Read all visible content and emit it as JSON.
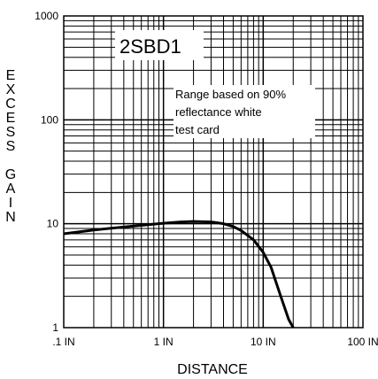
{
  "chart_data": {
    "type": "line",
    "title": "2SBD1",
    "annotation": [
      "Range based on 90%",
      "reflectance white",
      "test card"
    ],
    "xlabel": "DISTANCE",
    "ylabel": "EXCESS GAIN",
    "x_scale": "log",
    "y_scale": "log",
    "xlim": [
      0.1,
      100
    ],
    "ylim": [
      1,
      1000
    ],
    "x_tick_labels": [
      ".1 IN",
      "1 IN",
      "10 IN",
      "100 IN"
    ],
    "y_tick_labels": [
      "1",
      "10",
      "100",
      "1000"
    ],
    "grid": true,
    "series": [
      {
        "x": [
          0.1,
          0.2,
          0.4,
          0.7,
          1,
          1.5,
          2,
          3,
          4,
          5,
          6,
          8,
          10,
          12,
          15,
          18,
          20
        ],
        "y": [
          8,
          8.7,
          9.3,
          9.8,
          10.1,
          10.4,
          10.5,
          10.4,
          10.0,
          9.4,
          8.6,
          7.0,
          5.3,
          3.8,
          2.0,
          1.2,
          1.0
        ],
        "color": "#000000"
      }
    ]
  }
}
